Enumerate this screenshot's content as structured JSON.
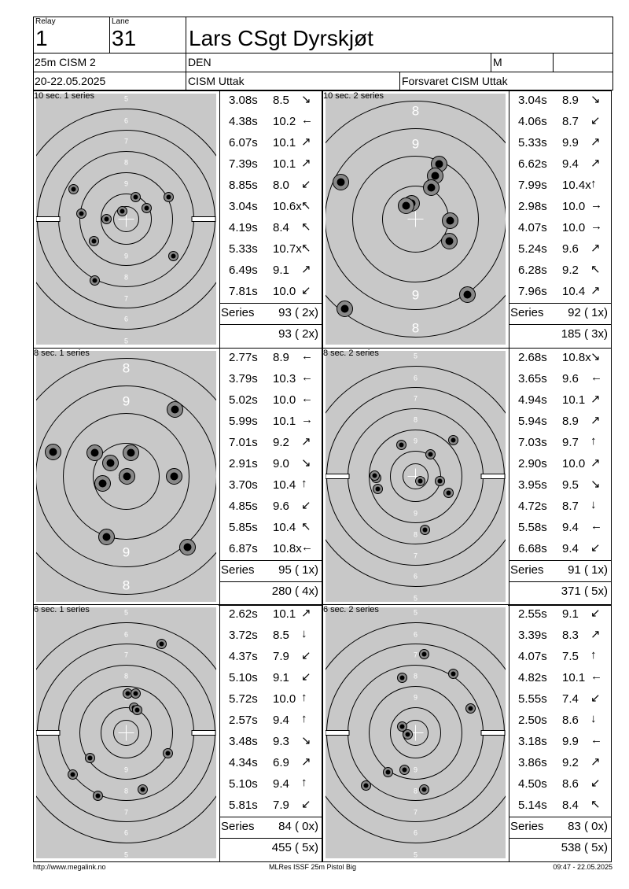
{
  "header": {
    "relay_label": "Relay",
    "relay": "1",
    "lane_label": "Lane",
    "lane": "31",
    "name": "Lars CSgt Dyrskjøt",
    "event": "25m CISM 2",
    "nation": "DEN",
    "gender": "M",
    "date": "20-22.05.2025",
    "competition": "CISM Uttak",
    "club": "Forsvaret CISM Uttak"
  },
  "panels": [
    {
      "title": "10 sec. 1 series",
      "zoom": false,
      "series_label": "Series",
      "series": "93 ( 2x)",
      "total": "93 ( 2x)",
      "shots": [
        [
          "3.08s",
          "8.5",
          "↘"
        ],
        [
          "4.38s",
          "10.2",
          "←"
        ],
        [
          "6.07s",
          "10.1",
          "↗"
        ],
        [
          "7.39s",
          "10.1",
          "↗"
        ],
        [
          "8.85s",
          "8.0",
          "↙"
        ],
        [
          "3.04s",
          "10.6x",
          "↖"
        ],
        [
          "4.19s",
          "8.4",
          "↖"
        ],
        [
          "5.33s",
          "10.7x",
          "↖"
        ],
        [
          "6.49s",
          "9.1",
          "↗"
        ],
        [
          "7.81s",
          "10.0",
          "↙"
        ]
      ]
    },
    {
      "title": "10 sec. 2 series",
      "zoom": true,
      "series_label": "Series",
      "series": "92 ( 1x)",
      "total": "185 ( 3x)",
      "shots": [
        [
          "3.04s",
          "8.9",
          "↘"
        ],
        [
          "4.06s",
          "8.7",
          "↙"
        ],
        [
          "5.33s",
          "9.9",
          "↗"
        ],
        [
          "6.62s",
          "9.4",
          "↗"
        ],
        [
          "7.99s",
          "10.4x",
          "↑"
        ],
        [
          "2.98s",
          "10.0",
          "→"
        ],
        [
          "4.07s",
          "10.0",
          "→"
        ],
        [
          "5.24s",
          "9.6",
          "↗"
        ],
        [
          "6.28s",
          "9.2",
          "↖"
        ],
        [
          "7.96s",
          "10.4",
          "↗"
        ]
      ]
    },
    {
      "title": "8 sec. 1 series",
      "zoom": true,
      "series_label": "Series",
      "series": "95 ( 1x)",
      "total": "280 ( 4x)",
      "shots": [
        [
          "2.77s",
          "8.9",
          "←"
        ],
        [
          "3.79s",
          "10.3",
          "←"
        ],
        [
          "5.02s",
          "10.0",
          "←"
        ],
        [
          "5.99s",
          "10.1",
          "→"
        ],
        [
          "7.01s",
          "9.2",
          "↗"
        ],
        [
          "2.91s",
          "9.0",
          "↘"
        ],
        [
          "3.70s",
          "10.4",
          "↑"
        ],
        [
          "4.85s",
          "9.6",
          "↙"
        ],
        [
          "5.85s",
          "10.4",
          "↖"
        ],
        [
          "6.87s",
          "10.8x",
          "←"
        ]
      ]
    },
    {
      "title": "8 sec. 2 series",
      "zoom": false,
      "series_label": "Series",
      "series": "91 ( 1x)",
      "total": "371 ( 5x)",
      "shots": [
        [
          "2.68s",
          "10.8x",
          "↘"
        ],
        [
          "3.65s",
          "9.6",
          "←"
        ],
        [
          "4.94s",
          "10.1",
          "↗"
        ],
        [
          "5.94s",
          "8.9",
          "↗"
        ],
        [
          "7.03s",
          "9.7",
          "↑"
        ],
        [
          "2.90s",
          "10.0",
          "↗"
        ],
        [
          "3.95s",
          "9.5",
          "↘"
        ],
        [
          "4.72s",
          "8.7",
          "↓"
        ],
        [
          "5.58s",
          "9.4",
          "←"
        ],
        [
          "6.68s",
          "9.4",
          "↙"
        ]
      ]
    },
    {
      "title": "6 sec. 1 series",
      "zoom": false,
      "series_label": "Series",
      "series": "84 ( 0x)",
      "total": "455 ( 5x)",
      "shots": [
        [
          "2.62s",
          "10.1",
          "↗"
        ],
        [
          "3.72s",
          "8.5",
          "↓"
        ],
        [
          "4.37s",
          "7.9",
          "↙"
        ],
        [
          "5.10s",
          "9.1",
          "↙"
        ],
        [
          "5.72s",
          "10.0",
          "↑"
        ],
        [
          "2.57s",
          "9.4",
          "↑"
        ],
        [
          "3.48s",
          "9.3",
          "↘"
        ],
        [
          "4.34s",
          "6.9",
          "↗"
        ],
        [
          "5.10s",
          "9.4",
          "↑"
        ],
        [
          "5.81s",
          "7.9",
          "↙"
        ]
      ]
    },
    {
      "title": "6 sec. 2 series",
      "zoom": false,
      "series_label": "Series",
      "series": "83 ( 0x)",
      "total": "538 ( 5x)",
      "shots": [
        [
          "2.55s",
          "9.1",
          "↙"
        ],
        [
          "3.39s",
          "8.3",
          "↗"
        ],
        [
          "4.07s",
          "7.5",
          "↑"
        ],
        [
          "4.82s",
          "10.1",
          "←"
        ],
        [
          "5.55s",
          "7.4",
          "↙"
        ],
        [
          "2.50s",
          "8.6",
          "↓"
        ],
        [
          "3.18s",
          "9.9",
          "←"
        ],
        [
          "3.86s",
          "9.2",
          "↗"
        ],
        [
          "4.50s",
          "8.6",
          "↙"
        ],
        [
          "5.14s",
          "8.4",
          "↖"
        ]
      ]
    }
  ],
  "ring_labels_full": [
    "5",
    "6",
    "7",
    "8",
    "9",
    "9",
    "8",
    "7",
    "6",
    "5"
  ],
  "ring_labels_zoom": [
    "8",
    "9",
    "9",
    "8"
  ],
  "footer": {
    "left": "http://www.megalink.no",
    "center": "MLRes ISSF 25m Pistol Big",
    "right": "09:47 - 22.05.2025"
  }
}
